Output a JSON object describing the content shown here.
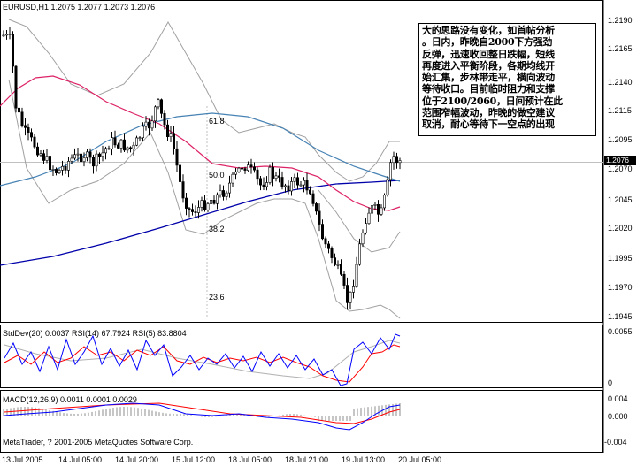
{
  "main": {
    "title": "EURUSD,H1  1.2075  1.2077  1.2073  1.2076",
    "price_axis": [
      "1.2190",
      "1.2165",
      "1.2140",
      "1.2115",
      "1.2095",
      "1.2070",
      "1.2045",
      "1.2020",
      "1.1995",
      "1.1970",
      "1.1945"
    ],
    "current_price": "1.2076",
    "fib_levels": [
      "61.8",
      "50.0",
      "38.2",
      "23.6"
    ],
    "note_lines": [
      "大的思路没有变化，如首帖分析",
      "。日内，昨晚自2000下方强劲",
      "反弹，迅速收回整日跌幅，短线",
      "再度进入平衡阶段，各期均线开",
      "始汇集，步林带走平，横向波动",
      "等待收口。目前临时阻力和支撑",
      "位于2100/2060，日间预计在此",
      "范围窄幅波动，昨晚的做空建议",
      "取消，耐心等待下一空点的出现"
    ]
  },
  "stddev_panel": {
    "title": "StdDev(20) 0.0037  RSI(14) 67.7924  RSI(5) 83.8804",
    "axis": [
      "0.0055",
      "0"
    ]
  },
  "macd_panel": {
    "title": "MACD(12,26,9) 0.0011 0.0001 0.0029",
    "axis": [
      "0.004",
      "0.000",
      "-0.004"
    ],
    "copyright": "MetaTrader, ? 2001-2005 MetaQuotes Software Corp."
  },
  "time_axis": [
    "13 Jul 2005",
    "14 Jul 05:00",
    "14 Jul 20:00",
    "15 Jul 12:00",
    "18 Jul 05:00",
    "18 Jul 21:00",
    "19 Jul 13:00",
    "20 Jul 05:00"
  ],
  "colors": {
    "candles": "#000000",
    "ma_blue": "#0000aa",
    "ma_steelblue": "#4682b4",
    "ma_pink": "#dd2266",
    "bollinger": "#a0a0a0",
    "stddev": "#b0b0b0",
    "rsi14": "#ff0000",
    "rsi5": "#0000ff",
    "macd_hist": "#a0a0a0"
  }
}
